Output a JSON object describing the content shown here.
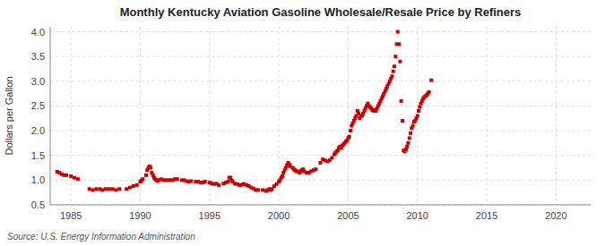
{
  "chart_data": {
    "type": "scatter",
    "title": "Monthly Kentucky Aviation Gasoline Wholesale/Resale Price by Refiners",
    "ylabel": "Dollars per Gallon",
    "annotations": [
      "Source: U.S. Energy Information Administration"
    ],
    "color": "#cc0000",
    "marker": "square",
    "grid": true,
    "xlim": [
      1983.5,
      2022.5
    ],
    "ylim": [
      0.5,
      4.1
    ],
    "xticks": [
      1985,
      1990,
      1995,
      2000,
      2005,
      2010,
      2015,
      2020
    ],
    "yticks": [
      0.5,
      {
        "value": 1.0,
        "label": "1.0"
      },
      1.5,
      {
        "value": 2.0,
        "label": "2.0"
      },
      2.5,
      {
        "value": 3.0,
        "label": "3.0"
      },
      3.5,
      {
        "value": 4.0,
        "label": "4.0"
      }
    ],
    "x": [
      1984.0,
      1984.17,
      1984.33,
      1984.5,
      1984.67,
      1985.0,
      1985.25,
      1985.5,
      1986.33,
      1986.58,
      1986.83,
      1987.08,
      1987.25,
      1987.5,
      1987.75,
      1988.0,
      1988.25,
      1988.5,
      1989.0,
      1989.25,
      1989.5,
      1989.75,
      1990.0,
      1990.08,
      1990.17,
      1990.42,
      1990.5,
      1990.58,
      1990.67,
      1990.75,
      1990.83,
      1990.92,
      1991.0,
      1991.08,
      1991.17,
      1991.25,
      1991.33,
      1991.5,
      1991.67,
      1991.83,
      1992.0,
      1992.17,
      1992.33,
      1992.5,
      1992.67,
      1993.0,
      1993.17,
      1993.33,
      1993.5,
      1993.67,
      1994.0,
      1994.17,
      1994.33,
      1994.5,
      1994.67,
      1995.0,
      1995.17,
      1995.33,
      1995.5,
      1995.67,
      1996.0,
      1996.17,
      1996.33,
      1996.42,
      1996.5,
      1996.58,
      1996.67,
      1996.83,
      1997.0,
      1997.17,
      1997.25,
      1997.42,
      1997.5,
      1997.67,
      1997.83,
      1998.0,
      1998.17,
      1998.33,
      1998.5,
      1998.83,
      1999.08,
      1999.17,
      1999.33,
      1999.42,
      1999.5,
      1999.67,
      1999.83,
      2000.0,
      2000.08,
      2000.17,
      2000.25,
      2000.33,
      2000.42,
      2000.5,
      2000.58,
      2000.67,
      2000.75,
      2000.83,
      2001.0,
      2001.08,
      2001.17,
      2001.25,
      2001.33,
      2001.5,
      2001.58,
      2001.67,
      2001.75,
      2001.83,
      2002.0,
      2002.17,
      2002.33,
      2002.5,
      2002.67,
      2003.0,
      2003.17,
      2003.33,
      2003.5,
      2003.67,
      2003.83,
      2004.0,
      2004.08,
      2004.17,
      2004.25,
      2004.33,
      2004.42,
      2004.5,
      2004.58,
      2004.67,
      2004.75,
      2004.83,
      2004.92,
      2005.0,
      2005.08,
      2005.17,
      2005.25,
      2005.33,
      2005.42,
      2005.5,
      2005.58,
      2005.67,
      2005.75,
      2005.83,
      2005.92,
      2006.0,
      2006.08,
      2006.17,
      2006.25,
      2006.33,
      2006.42,
      2006.5,
      2006.58,
      2006.67,
      2006.75,
      2006.83,
      2006.92,
      2007.0,
      2007.08,
      2007.17,
      2007.25,
      2007.33,
      2007.42,
      2007.5,
      2007.58,
      2007.67,
      2007.75,
      2007.83,
      2007.92,
      2008.0,
      2008.08,
      2008.17,
      2008.25,
      2008.33,
      2008.42,
      2008.5,
      2008.58,
      2008.67,
      2008.75,
      2008.83,
      2008.92,
      2009.0,
      2009.08,
      2009.17,
      2009.25,
      2009.33,
      2009.42,
      2009.5,
      2009.58,
      2009.67,
      2009.75,
      2009.83,
      2009.92,
      2010.0,
      2010.08,
      2010.17,
      2010.25,
      2010.33,
      2010.42,
      2010.5,
      2010.58,
      2010.67,
      2010.75,
      2010.83,
      2011.0
    ],
    "values": [
      1.17,
      1.15,
      1.12,
      1.1,
      1.1,
      1.08,
      1.05,
      1.02,
      0.82,
      0.8,
      0.82,
      0.82,
      0.8,
      0.82,
      0.82,
      0.82,
      0.8,
      0.82,
      0.82,
      0.85,
      0.88,
      0.9,
      0.97,
      0.99,
      1.02,
      1.1,
      1.2,
      1.25,
      1.28,
      1.25,
      1.15,
      1.1,
      1.05,
      1.02,
      1.0,
      0.98,
      1.0,
      1.02,
      1.0,
      1.0,
      1.0,
      1.0,
      1.0,
      1.02,
      1.02,
      1.0,
      1.0,
      0.98,
      0.97,
      0.98,
      0.97,
      0.97,
      0.95,
      0.95,
      0.97,
      0.95,
      0.93,
      0.92,
      0.93,
      0.9,
      0.93,
      0.95,
      0.97,
      1.05,
      1.05,
      1.0,
      0.97,
      0.93,
      0.92,
      0.9,
      0.9,
      0.92,
      0.92,
      0.9,
      0.88,
      0.85,
      0.83,
      0.8,
      0.8,
      0.8,
      0.78,
      0.8,
      0.82,
      0.8,
      0.82,
      0.88,
      0.92,
      0.97,
      1.0,
      1.05,
      1.08,
      1.15,
      1.2,
      1.25,
      1.3,
      1.35,
      1.32,
      1.28,
      1.25,
      1.22,
      1.2,
      1.18,
      1.18,
      1.15,
      1.18,
      1.2,
      1.22,
      1.18,
      1.15,
      1.15,
      1.18,
      1.2,
      1.22,
      1.35,
      1.42,
      1.4,
      1.38,
      1.4,
      1.45,
      1.52,
      1.55,
      1.58,
      1.6,
      1.65,
      1.68,
      1.65,
      1.7,
      1.72,
      1.75,
      1.78,
      1.8,
      1.85,
      1.88,
      2.0,
      2.1,
      2.15,
      2.2,
      2.25,
      2.3,
      2.4,
      2.35,
      2.25,
      2.3,
      2.3,
      2.35,
      2.4,
      2.45,
      2.5,
      2.55,
      2.5,
      2.48,
      2.45,
      2.42,
      2.4,
      2.42,
      2.4,
      2.45,
      2.5,
      2.55,
      2.6,
      2.65,
      2.7,
      2.75,
      2.8,
      2.85,
      2.9,
      2.95,
      3.0,
      3.05,
      3.1,
      3.2,
      3.3,
      3.5,
      3.75,
      4.0,
      3.75,
      3.4,
      2.6,
      2.2,
      1.6,
      1.58,
      1.62,
      1.68,
      1.75,
      1.85,
      1.95,
      2.05,
      2.1,
      2.18,
      2.2,
      2.25,
      2.3,
      2.4,
      2.48,
      2.55,
      2.6,
      2.65,
      2.68,
      2.7,
      2.72,
      2.75,
      2.78,
      3.02
    ]
  }
}
